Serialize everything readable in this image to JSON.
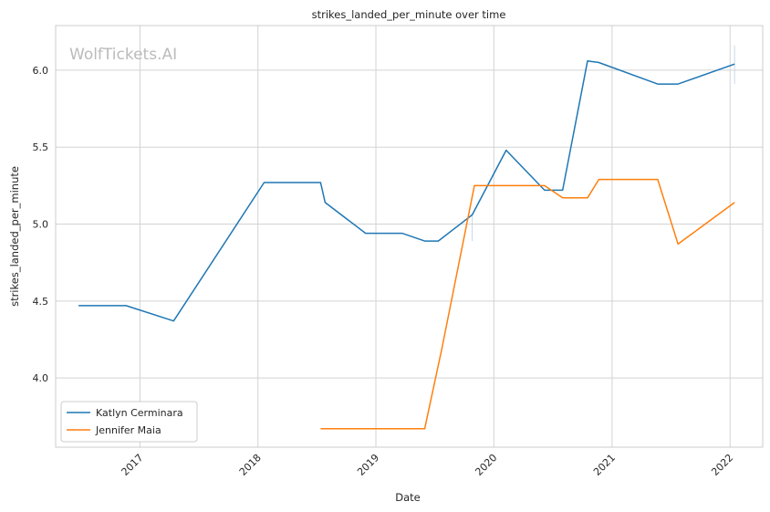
{
  "watermark": "WolfTickets.AI",
  "chart_data": {
    "type": "line",
    "title": "strikes_landed_per_minute over time",
    "xlabel": "Date",
    "ylabel": "strikes_landed_per_minute",
    "x_ticks": [
      "2017",
      "2018",
      "2019",
      "2020",
      "2021",
      "2022"
    ],
    "y_ticks": [
      "4.0",
      "4.5",
      "5.0",
      "5.5",
      "6.0"
    ],
    "xlim": [
      "2016-04-15",
      "2022-04-12"
    ],
    "ylim": [
      3.55,
      6.29
    ],
    "grid": true,
    "legend_position": "lower-left",
    "series": [
      {
        "name": "Katlyn Cerminara",
        "color": "#1f77b4",
        "points": [
          [
            "2016-06-25",
            4.47
          ],
          [
            "2016-11-19",
            4.47
          ],
          [
            "2017-04-15",
            4.37
          ],
          [
            "2018-01-20",
            5.27
          ],
          [
            "2018-07-14",
            5.27
          ],
          [
            "2018-07-28",
            5.14
          ],
          [
            "2018-11-30",
            4.94
          ],
          [
            "2019-03-23",
            4.94
          ],
          [
            "2019-06-01",
            4.89
          ],
          [
            "2019-07-13",
            4.89
          ],
          [
            "2019-10-26",
            5.06
          ],
          [
            "2020-02-08",
            5.48
          ],
          [
            "2020-06-06",
            5.22
          ],
          [
            "2020-08-01",
            5.22
          ],
          [
            "2020-10-17",
            6.06
          ],
          [
            "2020-11-21",
            6.05
          ],
          [
            "2021-05-22",
            5.91
          ],
          [
            "2021-07-24",
            5.91
          ],
          [
            "2022-01-15",
            6.04
          ]
        ],
        "error_bars": [
          {
            "x": "2019-10-26",
            "low": 4.89,
            "high": 5.06
          },
          {
            "x": "2022-01-15",
            "low": 5.91,
            "high": 6.16
          }
        ]
      },
      {
        "name": "Jennifer Maia",
        "color": "#ff7f0e",
        "points": [
          [
            "2018-07-14",
            3.67
          ],
          [
            "2019-06-01",
            3.67
          ],
          [
            "2019-07-24",
            4.19
          ],
          [
            "2019-11-02",
            5.25
          ],
          [
            "2020-06-06",
            5.25
          ],
          [
            "2020-08-01",
            5.17
          ],
          [
            "2020-10-17",
            5.17
          ],
          [
            "2020-11-21",
            5.29
          ],
          [
            "2021-05-22",
            5.29
          ],
          [
            "2021-07-24",
            4.87
          ],
          [
            "2022-01-15",
            5.14
          ]
        ]
      }
    ]
  }
}
